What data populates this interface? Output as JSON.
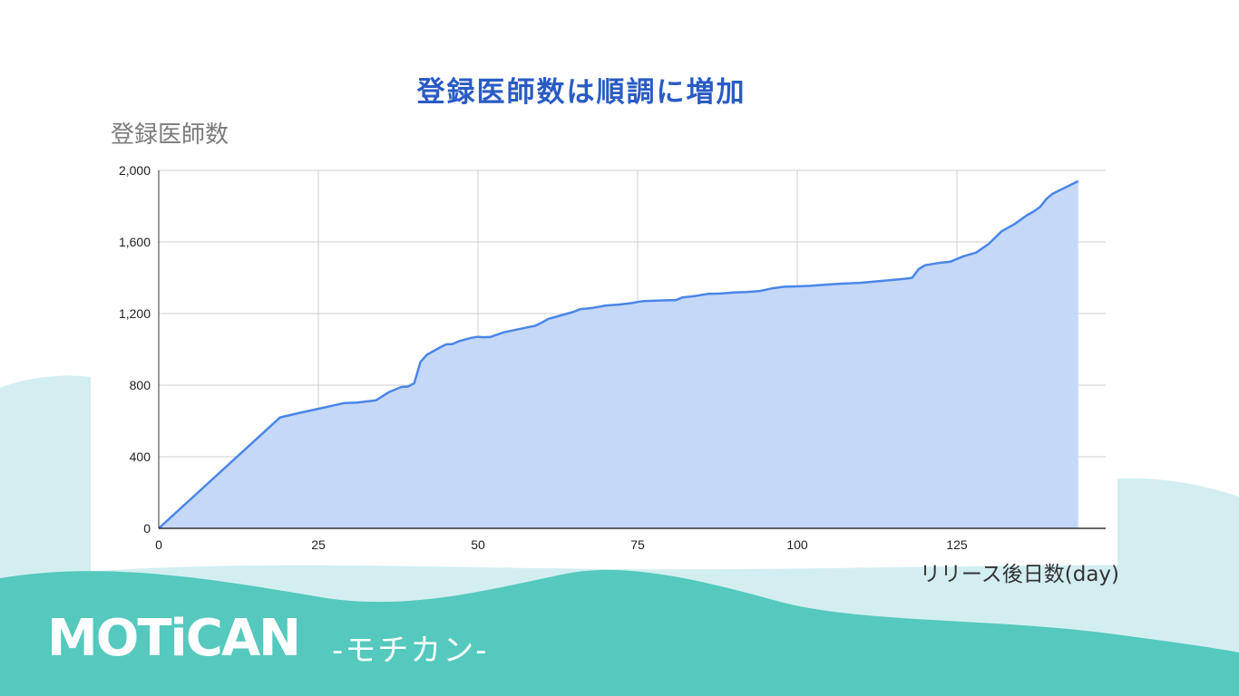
{
  "slide": {
    "title": "登録医師数は順調に増加",
    "logo_text": "MOTiCAN",
    "logo_subtitle": "-モチカン-",
    "colors": {
      "title": "#2a5bc4",
      "wave_light": "#d3eef1",
      "wave_dark": "#55c9bd",
      "area_fill": "#c5d8f7",
      "line": "#4a86e8"
    }
  },
  "chart_data": {
    "type": "area",
    "title": "",
    "ylabel": "登録医師数",
    "xlabel": "リリース後日数(day)",
    "xlim": [
      0,
      148
    ],
    "ylim": [
      0,
      2000
    ],
    "xticks": [
      0,
      25,
      50,
      75,
      100,
      125
    ],
    "yticks": [
      0,
      400,
      800,
      1200,
      1600,
      2000
    ],
    "ytick_labels": [
      "0",
      "400",
      "800",
      "1,200",
      "1,600",
      "2,000"
    ],
    "grid": true,
    "legend": "none",
    "series": [
      {
        "x": [
          0,
          19,
          22,
          25,
          29,
          31,
          34,
          36,
          38,
          39,
          40,
          41,
          42,
          43,
          44,
          45,
          46,
          47,
          48,
          49,
          50,
          51,
          52,
          54,
          56,
          58,
          59,
          60,
          61,
          62,
          64,
          65,
          66,
          67,
          68,
          70,
          72,
          74,
          75,
          76,
          80,
          81,
          82,
          84,
          86,
          88,
          90,
          92,
          94,
          96,
          98,
          100,
          102,
          106,
          110,
          114,
          117,
          118,
          119,
          120,
          122,
          124,
          126,
          128,
          130,
          132,
          134,
          136,
          137,
          138,
          139,
          140,
          142,
          144
        ],
        "y": [
          0,
          620,
          645,
          668,
          700,
          703,
          715,
          760,
          790,
          792,
          810,
          930,
          970,
          990,
          1010,
          1028,
          1030,
          1045,
          1055,
          1065,
          1070,
          1068,
          1070,
          1095,
          1110,
          1125,
          1132,
          1150,
          1170,
          1180,
          1200,
          1210,
          1225,
          1228,
          1232,
          1245,
          1250,
          1258,
          1265,
          1270,
          1275,
          1275,
          1290,
          1298,
          1310,
          1312,
          1318,
          1320,
          1325,
          1340,
          1350,
          1352,
          1355,
          1365,
          1372,
          1385,
          1395,
          1400,
          1448,
          1470,
          1482,
          1490,
          1520,
          1540,
          1590,
          1660,
          1700,
          1750,
          1770,
          1795,
          1840,
          1870,
          1905,
          1940
        ]
      }
    ]
  }
}
